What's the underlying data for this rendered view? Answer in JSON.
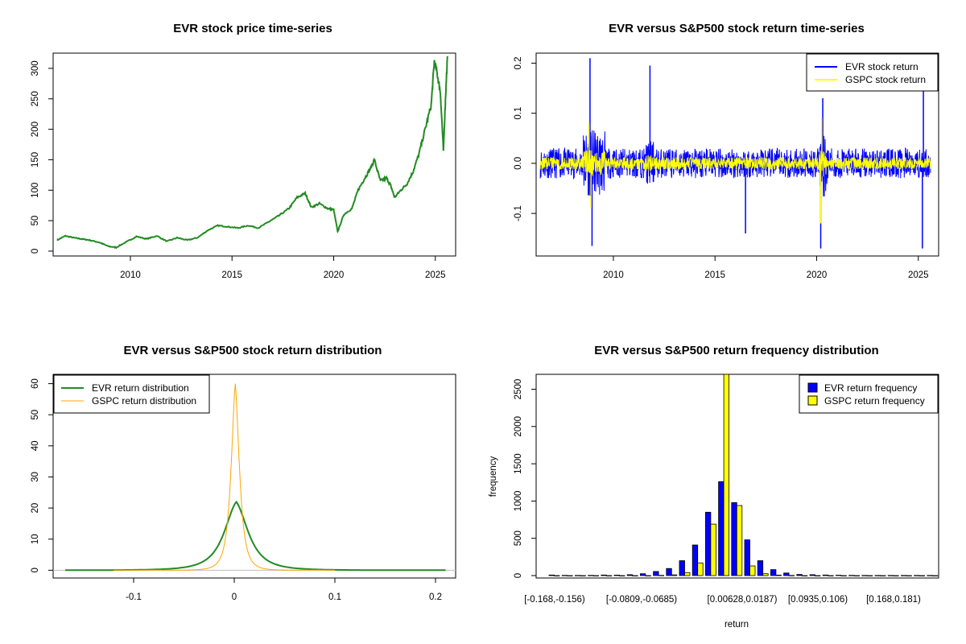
{
  "chart_data": [
    {
      "type": "line",
      "title": "EVR stock price time-series",
      "xlabel": "",
      "ylabel": "",
      "xlim": [
        2006.2,
        2026.0
      ],
      "ylim": [
        -8,
        325
      ],
      "xticks": [
        2010,
        2015,
        2020,
        2025
      ],
      "yticks": [
        0,
        50,
        100,
        150,
        200,
        250,
        300
      ],
      "colors": {
        "price": "#228B22"
      },
      "series": [
        {
          "x": [
            2006.4,
            2006.8,
            2007.2,
            2007.6,
            2008.0,
            2008.5,
            2008.9,
            2009.3,
            2009.8,
            2010.3,
            2010.8,
            2011.3,
            2011.8,
            2012.3,
            2012.8,
            2013.3,
            2013.8,
            2014.3,
            2014.8,
            2015.3,
            2015.8,
            2016.3,
            2016.8,
            2017.3,
            2017.8,
            2018.2,
            2018.6,
            2018.9,
            2019.3,
            2019.7,
            2020.0,
            2020.2,
            2020.5,
            2020.9,
            2021.2,
            2021.5,
            2021.8,
            2022.0,
            2022.3,
            2022.6,
            2022.8,
            2023.0,
            2023.3,
            2023.6,
            2023.9,
            2024.2,
            2024.5,
            2024.8,
            2024.95,
            2025.1,
            2025.25,
            2025.4,
            2025.5,
            2025.6
          ],
          "values": [
            18,
            25,
            22,
            20,
            18,
            14,
            8,
            6,
            15,
            24,
            20,
            25,
            16,
            22,
            18,
            22,
            34,
            42,
            40,
            38,
            42,
            38,
            48,
            58,
            70,
            88,
            95,
            72,
            78,
            70,
            68,
            32,
            60,
            70,
            100,
            118,
            135,
            150,
            115,
            120,
            108,
            88,
            100,
            110,
            130,
            160,
            200,
            240,
            312,
            290,
            260,
            165,
            250,
            320
          ]
        }
      ]
    },
    {
      "type": "line",
      "title": "EVR versus S&P500 stock return time-series",
      "xlabel": "",
      "ylabel": "",
      "xlim": [
        2006.2,
        2026.0
      ],
      "ylim": [
        -0.185,
        0.22
      ],
      "xticks": [
        2010,
        2015,
        2020,
        2025
      ],
      "yticks": [
        -0.1,
        0.0,
        0.1,
        0.2
      ],
      "legend": {
        "position": "top-right"
      },
      "series": [
        {
          "name": "EVR stock return",
          "color": "#0000FF",
          "band": 0.03,
          "spikes": [
            [
              2008.85,
              0.21
            ],
            [
              2008.95,
              -0.165
            ],
            [
              2011.8,
              0.195
            ],
            [
              2016.5,
              -0.14
            ],
            [
              2020.2,
              -0.17
            ],
            [
              2020.3,
              0.13
            ],
            [
              2025.2,
              -0.17
            ],
            [
              2025.25,
              0.15
            ]
          ]
        },
        {
          "name": "GSPC stock return",
          "color": "#FFFF00",
          "band": 0.012,
          "spikes": [
            [
              2008.8,
              0.08
            ],
            [
              2008.9,
              -0.09
            ],
            [
              2020.2,
              -0.12
            ],
            [
              2020.25,
              0.09
            ]
          ]
        }
      ]
    },
    {
      "type": "line",
      "title": "EVR versus S&P500 stock return distribution",
      "xlabel": "",
      "ylabel": "",
      "xlim": [
        -0.18,
        0.22
      ],
      "ylim": [
        -2.5,
        63
      ],
      "xticks": [
        -0.1,
        0.0,
        0.1,
        0.2
      ],
      "yticks": [
        0,
        10,
        20,
        30,
        40,
        50,
        60
      ],
      "legend": {
        "position": "top-left"
      },
      "series": [
        {
          "name": "EVR return distribution",
          "color": "#228B22",
          "peak": 22,
          "center": 0.002
        },
        {
          "name": "GSPC return distribution",
          "color": "#FFA500",
          "peak": 60,
          "center": 0.001
        }
      ]
    },
    {
      "type": "bar",
      "title": "EVR versus S&P500 return frequency distribution",
      "xlabel": "return",
      "ylabel": "frequency",
      "ylim": [
        0,
        2700
      ],
      "yticks": [
        0,
        500,
        1000,
        1500,
        2000,
        2500
      ],
      "categories_shown": [
        "[-0.168,-0.156)",
        "[-0.0809,-0.0685)",
        "[0.00628,0.0187)",
        "[0.0935,0.106)",
        "[0.168,0.181)"
      ],
      "legend": {
        "position": "top-right"
      },
      "series": [
        {
          "name": "EVR return frequency",
          "color": "#0000FF",
          "values": [
            8,
            3,
            2,
            3,
            8,
            6,
            12,
            25,
            55,
            95,
            200,
            410,
            850,
            1260,
            980,
            480,
            200,
            80,
            35,
            15,
            12,
            8,
            5,
            3,
            2,
            2,
            2,
            2,
            2,
            2
          ]
        },
        {
          "name": "GSPC return frequency",
          "color": "#FFFF00",
          "values": [
            0,
            0,
            0,
            0,
            0,
            0,
            0,
            0,
            3,
            10,
            40,
            170,
            690,
            2700,
            940,
            130,
            25,
            6,
            2,
            0,
            0,
            0,
            0,
            0,
            0,
            0,
            0,
            0,
            0,
            0
          ]
        }
      ]
    }
  ]
}
